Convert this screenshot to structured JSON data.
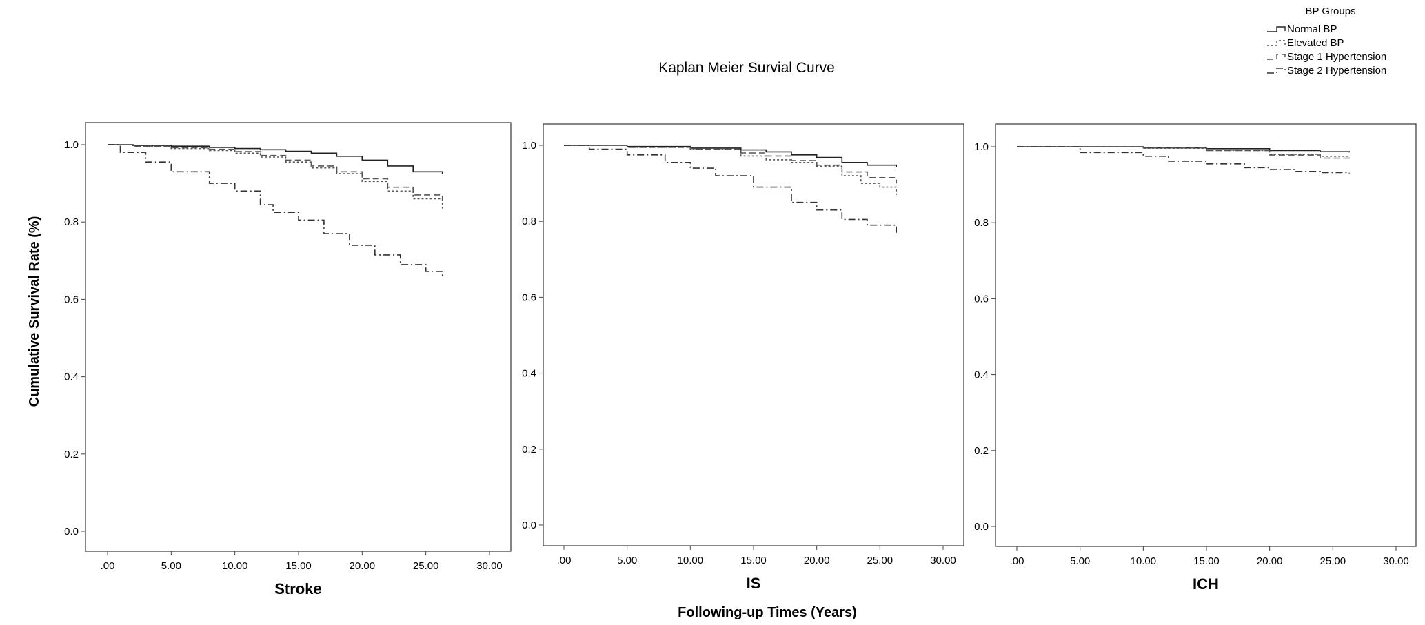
{
  "chart_data": {
    "type": "line",
    "title": "Kaplan Meier Survial Curve",
    "ylabel": "Cumulative Survival Rate (%)",
    "xlabel": "Following-up Times (Years)",
    "xlim": [
      0,
      30
    ],
    "ylim": [
      0,
      1.0
    ],
    "x_ticks": [
      ".00",
      "5.00",
      "10.00",
      "15.00",
      "20.00",
      "25.00",
      "30.00"
    ],
    "y_ticks": [
      "0.0",
      "0.2",
      "0.4",
      "0.6",
      "0.8",
      "1.0"
    ],
    "grid": false,
    "legend": {
      "title": "BP Groups",
      "placement": "top-right",
      "entries": [
        "Normal BP",
        "Elevated BP",
        "Stage 1 Hypertension",
        "Stage 2 Hypertension"
      ]
    },
    "line_styles": [
      "solid",
      "dotted",
      "dashed",
      "dashdot"
    ],
    "line_color": "#000000",
    "panels": [
      {
        "panel_label": "Stroke",
        "series": [
          {
            "x": [
              0,
              2,
              5,
              8,
              10,
              12,
              14,
              16,
              18,
              20,
              22,
              24,
              26.3
            ],
            "y": [
              1.0,
              0.998,
              0.996,
              0.993,
              0.99,
              0.987,
              0.983,
              0.978,
              0.97,
              0.96,
              0.945,
              0.93,
              0.925
            ]
          },
          {
            "x": [
              0,
              2,
              5,
              8,
              10,
              12,
              14,
              16,
              18,
              20,
              22,
              24,
              26.3
            ],
            "y": [
              1.0,
              0.995,
              0.99,
              0.985,
              0.978,
              0.968,
              0.955,
              0.94,
              0.925,
              0.905,
              0.88,
              0.86,
              0.835
            ]
          },
          {
            "x": [
              0,
              2,
              5,
              8,
              10,
              12,
              14,
              16,
              18,
              20,
              22,
              24,
              26.3
            ],
            "y": [
              1.0,
              0.996,
              0.992,
              0.988,
              0.982,
              0.972,
              0.96,
              0.945,
              0.93,
              0.912,
              0.89,
              0.87,
              0.855
            ]
          },
          {
            "x": [
              0,
              1,
              3,
              5,
              8,
              10,
              12,
              13,
              15,
              17,
              19,
              21,
              23,
              25,
              26.3
            ],
            "y": [
              1.0,
              0.98,
              0.955,
              0.93,
              0.9,
              0.88,
              0.845,
              0.825,
              0.805,
              0.77,
              0.74,
              0.715,
              0.69,
              0.672,
              0.658
            ]
          }
        ]
      },
      {
        "panel_label": "IS",
        "series": [
          {
            "x": [
              0,
              5,
              10,
              14,
              16,
              18,
              20,
              22,
              24,
              26.3
            ],
            "y": [
              1.0,
              0.997,
              0.993,
              0.988,
              0.983,
              0.975,
              0.968,
              0.955,
              0.948,
              0.942
            ]
          },
          {
            "x": [
              0,
              5,
              10,
              14,
              16,
              18,
              20,
              22,
              23.5,
              25,
              26.3
            ],
            "y": [
              1.0,
              0.995,
              0.99,
              0.972,
              0.962,
              0.955,
              0.945,
              0.92,
              0.9,
              0.89,
              0.87
            ]
          },
          {
            "x": [
              0,
              5,
              10,
              14,
              16,
              18,
              20,
              22,
              24,
              26.3
            ],
            "y": [
              1.0,
              0.995,
              0.99,
              0.98,
              0.972,
              0.96,
              0.948,
              0.93,
              0.915,
              0.9
            ]
          },
          {
            "x": [
              0,
              2,
              5,
              8,
              10,
              12,
              15,
              18,
              20,
              22,
              24,
              26.3
            ],
            "y": [
              1.0,
              0.99,
              0.975,
              0.955,
              0.94,
              0.92,
              0.89,
              0.85,
              0.83,
              0.805,
              0.79,
              0.77
            ]
          }
        ]
      },
      {
        "panel_label": "ICH",
        "series": [
          {
            "x": [
              0,
              10,
              15,
              20,
              24,
              26.3
            ],
            "y": [
              1.0,
              0.997,
              0.995,
              0.99,
              0.987,
              0.985
            ]
          },
          {
            "x": [
              0,
              10,
              15,
              20,
              24,
              26.3
            ],
            "y": [
              1.0,
              0.996,
              0.99,
              0.98,
              0.975,
              0.972
            ]
          },
          {
            "x": [
              0,
              10,
              15,
              20,
              24,
              26.3
            ],
            "y": [
              1.0,
              0.997,
              0.99,
              0.978,
              0.97,
              0.965
            ]
          },
          {
            "x": [
              0,
              5,
              10,
              12,
              15,
              18,
              20,
              22,
              24,
              26.3
            ],
            "y": [
              1.0,
              0.985,
              0.975,
              0.962,
              0.955,
              0.945,
              0.94,
              0.935,
              0.932,
              0.93
            ]
          }
        ]
      }
    ]
  }
}
